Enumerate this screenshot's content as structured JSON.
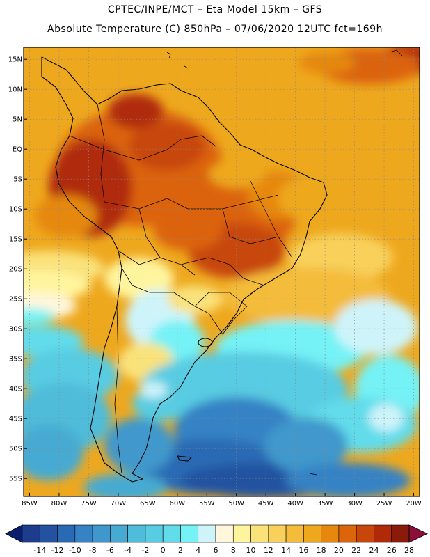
{
  "header": {
    "line1": "CPTEC/INPE/MCT –  Eta Model 15km – GFS",
    "line2": "Absolute Temperature (C) 850hPa – 07/06/2020 12UTC fct=169h"
  },
  "map": {
    "lat_ticks": [
      "15N",
      "10N",
      "5N",
      "EQ",
      "5S",
      "10S",
      "15S",
      "20S",
      "25S",
      "30S",
      "35S",
      "40S",
      "45S",
      "50S",
      "55S"
    ],
    "lon_ticks": [
      "85W",
      "80W",
      "75W",
      "70W",
      "65W",
      "60W",
      "55W",
      "50W",
      "45W",
      "40W",
      "35W",
      "30W",
      "25W",
      "20W"
    ],
    "lat_values": [
      15,
      10,
      5,
      0,
      -5,
      -10,
      -15,
      -20,
      -25,
      -30,
      -35,
      -40,
      -45,
      -50,
      -55
    ],
    "lon_values": [
      -85,
      -80,
      -75,
      -70,
      -65,
      -60,
      -55,
      -50,
      -45,
      -40,
      -35,
      -30,
      -25,
      -20
    ],
    "lat_range": [
      -58,
      17
    ],
    "lon_range": [
      -86,
      -19
    ],
    "gridlines": "dotted"
  },
  "colorbar": {
    "labels": [
      "-14",
      "-12",
      "-10",
      "-8",
      "-6",
      "-4",
      "-2",
      "0",
      "2",
      "4",
      "6",
      "8",
      "10",
      "12",
      "14",
      "16",
      "18",
      "20",
      "22",
      "24",
      "26",
      "28"
    ],
    "colors": [
      "#1e3c8c",
      "#2352a0",
      "#2a6ab4",
      "#3582c4",
      "#3f98cc",
      "#46aad2",
      "#4fbcda",
      "#58cce2",
      "#62dcea",
      "#74f2f6",
      "#cef4fa",
      "#fff6dc",
      "#fff49e",
      "#fae27a",
      "#f8d05a",
      "#f4bc3a",
      "#eea81e",
      "#e6880e",
      "#dc640a",
      "#c8460a",
      "#b02a0a",
      "#8a1a0a",
      "#6a100a",
      "#8c0f3a"
    ],
    "under_color": "#0a1e6e",
    "over_color": "#8a0f3a"
  }
}
